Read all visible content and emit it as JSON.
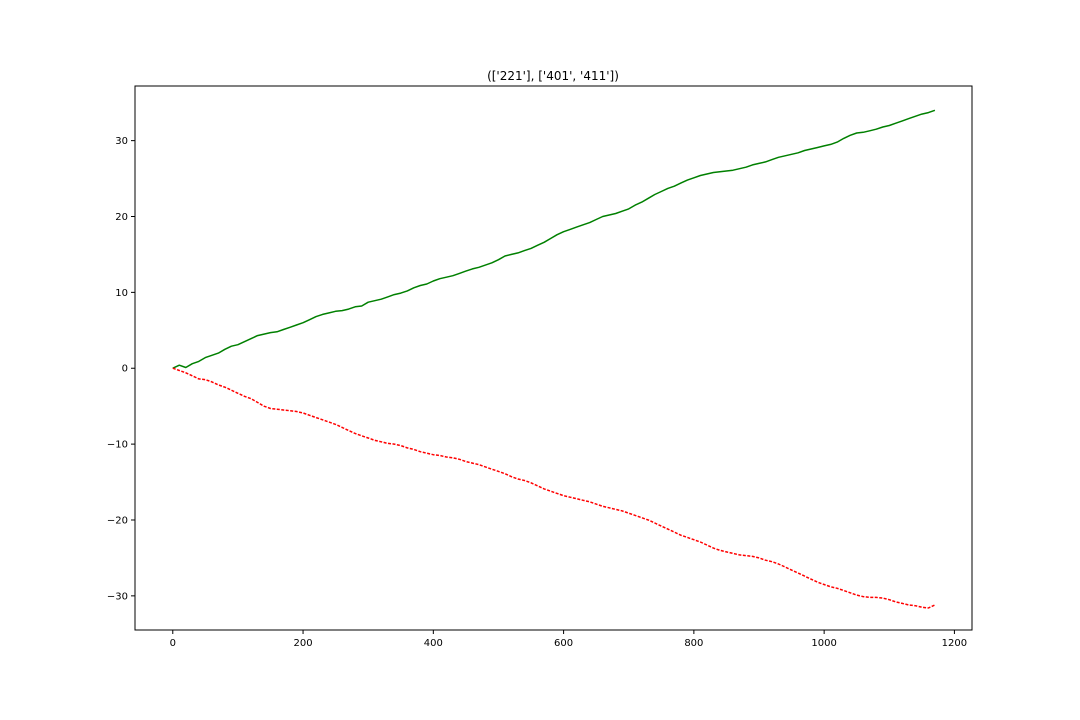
{
  "chart_data": {
    "type": "line",
    "title": "(['221'], ['401', '411'])",
    "xlabel": "",
    "ylabel": "",
    "xlim": [
      -58,
      1227
    ],
    "ylim": [
      -34.5,
      37.2
    ],
    "xticks": [
      0,
      200,
      400,
      600,
      800,
      1000,
      1200
    ],
    "yticks": [
      -30,
      -20,
      -10,
      0,
      10,
      20,
      30
    ],
    "grid": false,
    "legend": "none",
    "series": [
      {
        "color": "#008000",
        "line_style": "solid",
        "x": [
          0,
          10,
          20,
          30,
          40,
          50,
          60,
          70,
          80,
          90,
          100,
          110,
          120,
          130,
          140,
          150,
          160,
          170,
          180,
          190,
          200,
          210,
          220,
          230,
          240,
          250,
          260,
          270,
          280,
          290,
          300,
          310,
          320,
          330,
          340,
          350,
          360,
          370,
          380,
          390,
          400,
          410,
          420,
          430,
          440,
          450,
          460,
          470,
          480,
          490,
          500,
          510,
          520,
          530,
          540,
          550,
          560,
          570,
          580,
          590,
          600,
          610,
          620,
          630,
          640,
          650,
          660,
          670,
          680,
          690,
          700,
          710,
          720,
          730,
          740,
          750,
          760,
          770,
          780,
          790,
          800,
          810,
          820,
          830,
          840,
          850,
          860,
          870,
          880,
          890,
          900,
          910,
          920,
          930,
          940,
          950,
          960,
          970,
          980,
          990,
          1000,
          1010,
          1020,
          1030,
          1040,
          1050,
          1060,
          1070,
          1080,
          1090,
          1100,
          1110,
          1120,
          1130,
          1140,
          1150,
          1160,
          1170
        ],
        "y": [
          0.0,
          0.4,
          0.1,
          0.6,
          0.9,
          1.4,
          1.7,
          2.0,
          2.5,
          2.9,
          3.1,
          3.5,
          3.9,
          4.3,
          4.5,
          4.7,
          4.8,
          5.1,
          5.4,
          5.7,
          6.0,
          6.4,
          6.8,
          7.1,
          7.3,
          7.5,
          7.6,
          7.8,
          8.1,
          8.2,
          8.7,
          8.9,
          9.1,
          9.4,
          9.7,
          9.9,
          10.2,
          10.6,
          10.9,
          11.1,
          11.5,
          11.8,
          12.0,
          12.2,
          12.5,
          12.8,
          13.1,
          13.3,
          13.6,
          13.9,
          14.3,
          14.8,
          15.0,
          15.2,
          15.5,
          15.8,
          16.2,
          16.6,
          17.1,
          17.6,
          18.0,
          18.3,
          18.6,
          18.9,
          19.2,
          19.6,
          20.0,
          20.2,
          20.4,
          20.7,
          21.0,
          21.5,
          21.9,
          22.4,
          22.9,
          23.3,
          23.7,
          24.0,
          24.4,
          24.8,
          25.1,
          25.4,
          25.6,
          25.8,
          25.9,
          26.0,
          26.1,
          26.3,
          26.5,
          26.8,
          27.0,
          27.2,
          27.5,
          27.8,
          28.0,
          28.2,
          28.4,
          28.7,
          28.9,
          29.1,
          29.3,
          29.5,
          29.8,
          30.3,
          30.7,
          31.0,
          31.1,
          31.3,
          31.5,
          31.8,
          32.0,
          32.3,
          32.6,
          32.9,
          33.2,
          33.5,
          33.7,
          34.0
        ]
      },
      {
        "color": "#ff0000",
        "line_style": "dashed",
        "x": [
          0,
          10,
          20,
          30,
          40,
          50,
          60,
          70,
          80,
          90,
          100,
          110,
          120,
          130,
          140,
          150,
          160,
          170,
          180,
          190,
          200,
          210,
          220,
          230,
          240,
          250,
          260,
          270,
          280,
          290,
          300,
          310,
          320,
          330,
          340,
          350,
          360,
          370,
          380,
          390,
          400,
          410,
          420,
          430,
          440,
          450,
          460,
          470,
          480,
          490,
          500,
          510,
          520,
          530,
          540,
          550,
          560,
          570,
          580,
          590,
          600,
          610,
          620,
          630,
          640,
          650,
          660,
          670,
          680,
          690,
          700,
          710,
          720,
          730,
          740,
          750,
          760,
          770,
          780,
          790,
          800,
          810,
          820,
          830,
          840,
          850,
          860,
          870,
          880,
          890,
          900,
          910,
          920,
          930,
          940,
          950,
          960,
          970,
          980,
          990,
          1000,
          1010,
          1020,
          1030,
          1040,
          1050,
          1060,
          1070,
          1080,
          1090,
          1100,
          1110,
          1120,
          1130,
          1140,
          1150,
          1160,
          1170
        ],
        "y": [
          0.0,
          -0.3,
          -0.6,
          -1.0,
          -1.4,
          -1.5,
          -1.8,
          -2.2,
          -2.5,
          -2.9,
          -3.3,
          -3.7,
          -4.0,
          -4.5,
          -5.0,
          -5.3,
          -5.4,
          -5.5,
          -5.6,
          -5.7,
          -5.9,
          -6.2,
          -6.5,
          -6.8,
          -7.1,
          -7.4,
          -7.8,
          -8.2,
          -8.6,
          -8.9,
          -9.2,
          -9.5,
          -9.7,
          -9.9,
          -10.0,
          -10.2,
          -10.5,
          -10.7,
          -11.0,
          -11.2,
          -11.4,
          -11.5,
          -11.7,
          -11.8,
          -12.0,
          -12.3,
          -12.5,
          -12.7,
          -13.0,
          -13.3,
          -13.6,
          -13.9,
          -14.3,
          -14.6,
          -14.8,
          -15.1,
          -15.5,
          -15.9,
          -16.2,
          -16.5,
          -16.8,
          -17.0,
          -17.2,
          -17.4,
          -17.6,
          -17.9,
          -18.2,
          -18.4,
          -18.6,
          -18.8,
          -19.1,
          -19.4,
          -19.7,
          -20.0,
          -20.4,
          -20.8,
          -21.2,
          -21.6,
          -22.0,
          -22.3,
          -22.6,
          -22.9,
          -23.3,
          -23.7,
          -24.0,
          -24.2,
          -24.4,
          -24.6,
          -24.7,
          -24.8,
          -25.0,
          -25.3,
          -25.5,
          -25.8,
          -26.2,
          -26.6,
          -27.0,
          -27.4,
          -27.8,
          -28.2,
          -28.5,
          -28.8,
          -29.0,
          -29.3,
          -29.6,
          -29.9,
          -30.1,
          -30.2,
          -30.2,
          -30.3,
          -30.5,
          -30.8,
          -31.0,
          -31.2,
          -31.3,
          -31.5,
          -31.6,
          -31.2
        ]
      }
    ]
  }
}
